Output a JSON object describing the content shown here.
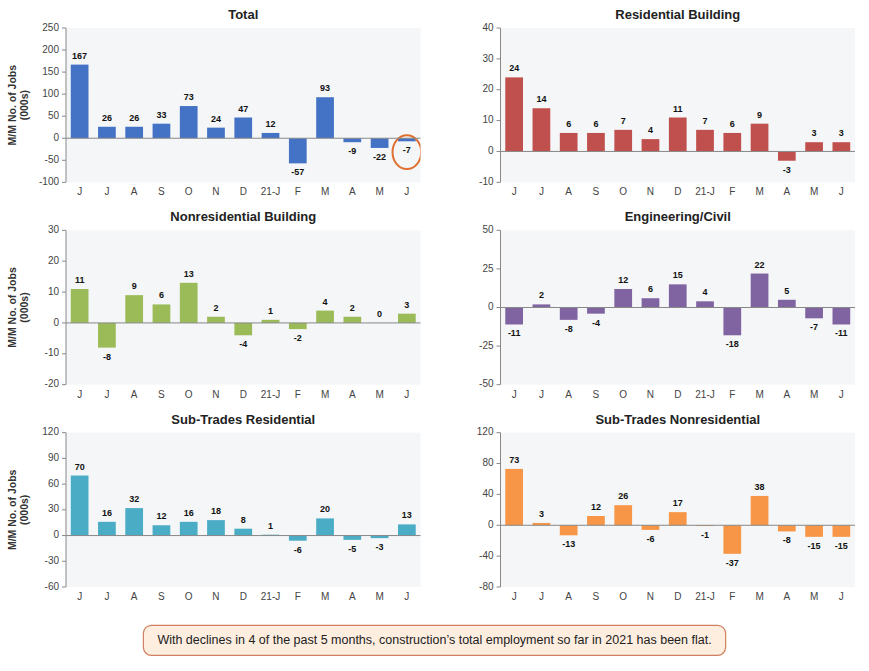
{
  "chart_data": [
    {
      "type": "bar",
      "title": "Total",
      "categories": [
        "J",
        "J",
        "A",
        "S",
        "O",
        "N",
        "D",
        "21-J",
        "F",
        "M",
        "A",
        "M",
        "J"
      ],
      "values": [
        167,
        26,
        26,
        33,
        73,
        24,
        47,
        12,
        -57,
        93,
        -9,
        -22,
        -7
      ],
      "color": "#4472C4",
      "ylim": [
        -100,
        250
      ],
      "yticks": [
        -100,
        -50,
        0,
        50,
        100,
        150,
        200,
        250
      ],
      "y_label": "M/M No. of Jobs\n(000s)",
      "data_labels": true,
      "grid": false,
      "annotation": "With declines in 4 of the past 5 months, construction’s total employment so far in 2021 has been flat."
    },
    {
      "type": "bar",
      "title": "Residential Building",
      "categories": [
        "J",
        "J",
        "A",
        "S",
        "O",
        "N",
        "D",
        "21-J",
        "F",
        "M",
        "A",
        "M",
        "J"
      ],
      "values": [
        24,
        14,
        6,
        6,
        7,
        4,
        11,
        7,
        6,
        9,
        -3,
        3,
        3
      ],
      "color": "#C0504D",
      "ylim": [
        -10,
        40
      ],
      "yticks": [
        -10,
        0,
        10,
        20,
        30,
        40
      ],
      "data_labels": true,
      "grid": false
    },
    {
      "type": "bar",
      "title": "Nonresidential Building",
      "categories": [
        "J",
        "J",
        "A",
        "S",
        "O",
        "N",
        "D",
        "21-J",
        "F",
        "M",
        "A",
        "M",
        "J"
      ],
      "values": [
        11,
        -8,
        9,
        6,
        13,
        2,
        -4,
        1,
        -2,
        4,
        2,
        0,
        3
      ],
      "color": "#9BBB59",
      "ylim": [
        -20,
        30
      ],
      "yticks": [
        -20,
        -10,
        0,
        10,
        20,
        30
      ],
      "y_label": "M/M No. of Jobs\n(000s)",
      "data_labels": true,
      "grid": false
    },
    {
      "type": "bar",
      "title": "Engineering/Civil",
      "categories": [
        "J",
        "J",
        "A",
        "S",
        "O",
        "N",
        "D",
        "21-J",
        "F",
        "M",
        "A",
        "M",
        "J"
      ],
      "values": [
        -11,
        2,
        -8,
        -4,
        12,
        6,
        15,
        4,
        -18,
        22,
        5,
        -7,
        -11
      ],
      "color": "#8064A2",
      "ylim": [
        -50,
        50
      ],
      "yticks": [
        -50,
        -25,
        0,
        25,
        50
      ],
      "data_labels": true,
      "grid": false
    },
    {
      "type": "bar",
      "title": "Sub-Trades Residential",
      "categories": [
        "J",
        "J",
        "A",
        "S",
        "O",
        "N",
        "D",
        "21-J",
        "F",
        "M",
        "A",
        "M",
        "J"
      ],
      "values": [
        70,
        16,
        32,
        12,
        16,
        18,
        8,
        1,
        -6,
        20,
        -5,
        -3,
        13
      ],
      "color": "#4BACC6",
      "ylim": [
        -60,
        120
      ],
      "yticks": [
        -60,
        -30,
        0,
        30,
        60,
        90,
        120
      ],
      "y_label": "M/M No. of Jobs\n(000s)",
      "data_labels": true,
      "grid": false
    },
    {
      "type": "bar",
      "title": "Sub-Trades Nonresidential",
      "categories": [
        "J",
        "J",
        "A",
        "S",
        "O",
        "N",
        "D",
        "21-J",
        "F",
        "M",
        "A",
        "M",
        "J"
      ],
      "values": [
        73,
        3,
        -13,
        12,
        26,
        -6,
        17,
        -1,
        -37,
        38,
        -8,
        -15,
        -15
      ],
      "color": "#F79646",
      "ylim": [
        -80,
        120
      ],
      "yticks": [
        -80,
        -40,
        0,
        40,
        80,
        120
      ],
      "data_labels": true,
      "grid": false
    }
  ]
}
